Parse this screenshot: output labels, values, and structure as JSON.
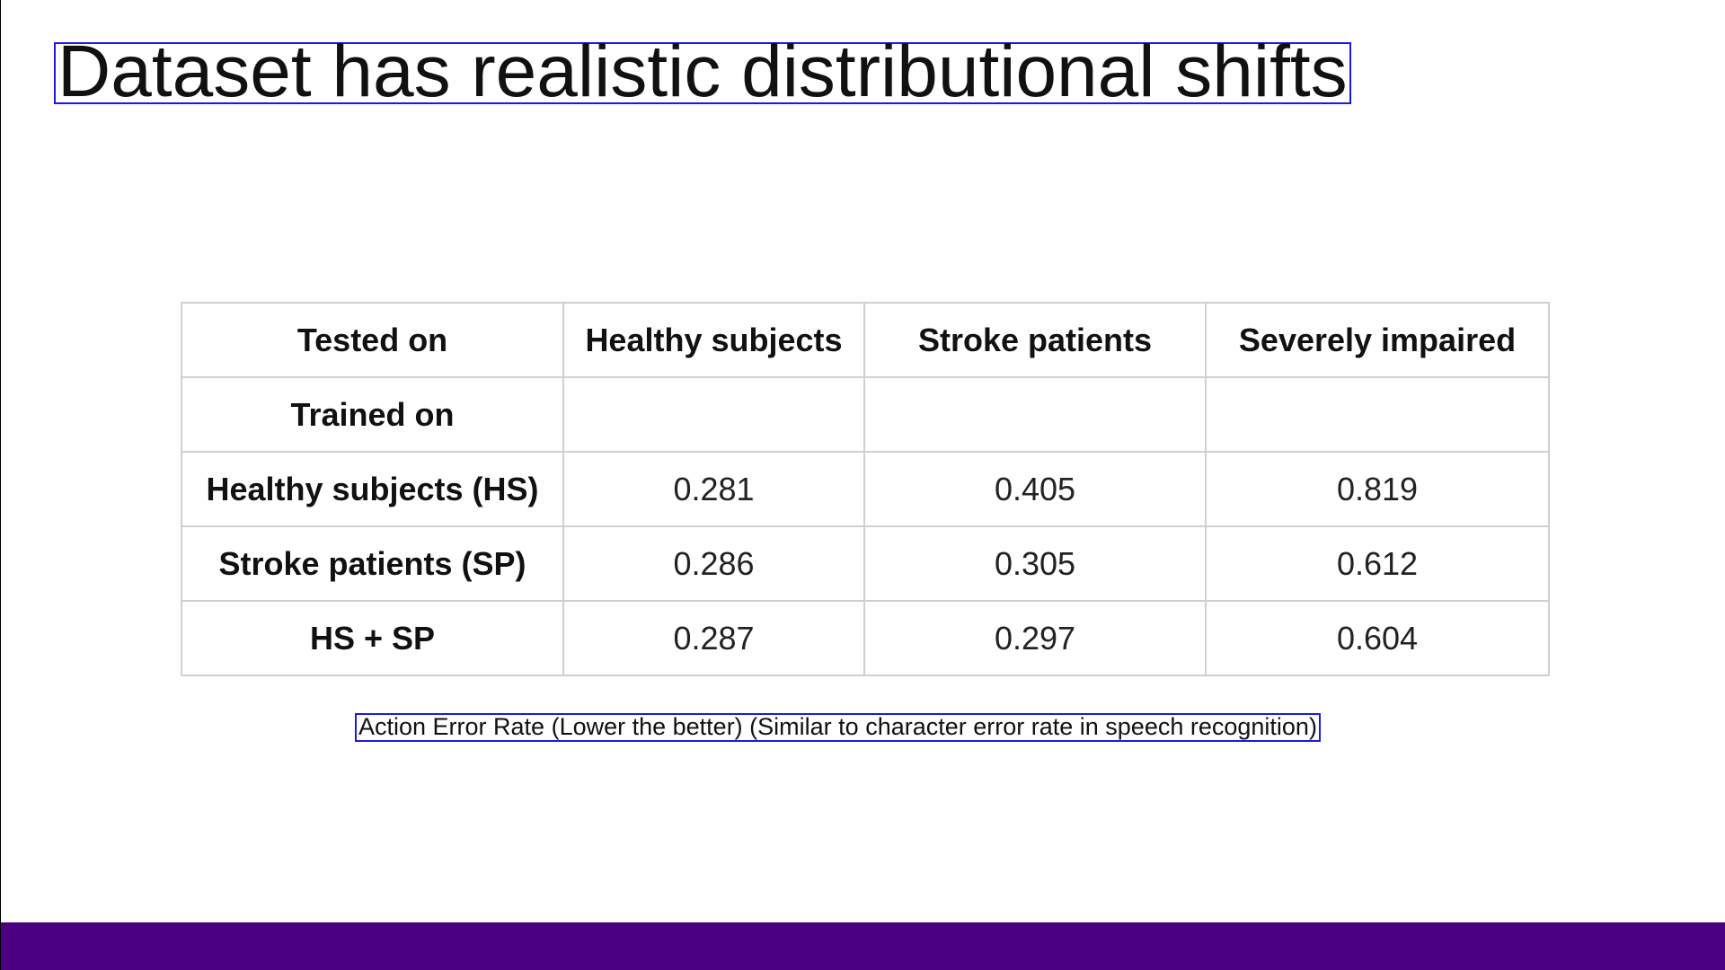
{
  "slide": {
    "title": "Dataset has realistic distributional shifts",
    "caption": "Action Error Rate (Lower the better)  (Similar to character error rate in speech recognition)",
    "footer_color": "#4b0082"
  },
  "table": {
    "header": [
      "Tested on",
      "Healthy subjects",
      "Stroke patients",
      "Severely impaired"
    ],
    "subheader": "Trained on",
    "rows": [
      {
        "label": "Healthy subjects (HS)",
        "values": [
          "0.281",
          "0.405",
          "0.819"
        ]
      },
      {
        "label": "Stroke patients (SP)",
        "values": [
          "0.286",
          "0.305",
          "0.612"
        ]
      },
      {
        "label": "HS + SP",
        "values": [
          "0.287",
          "0.297",
          "0.604"
        ]
      }
    ]
  }
}
